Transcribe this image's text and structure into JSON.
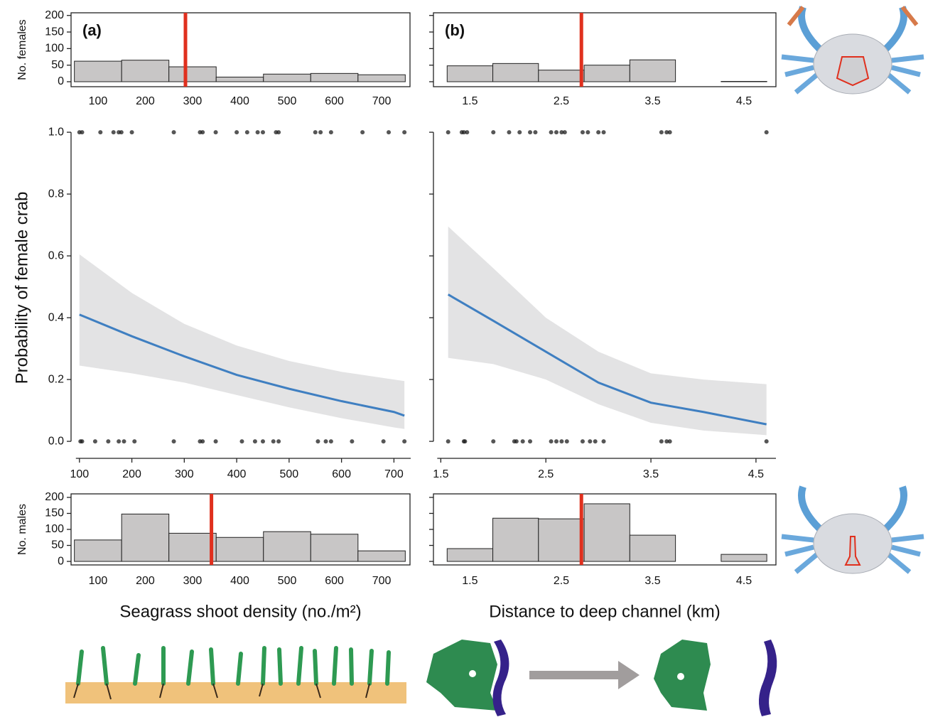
{
  "chart_data": [
    {
      "type": "histogram",
      "panel_label": "(a)",
      "y_label": "No. females",
      "bins": [
        50,
        150,
        250,
        350,
        450,
        550,
        650,
        750
      ],
      "counts": [
        62,
        65,
        45,
        14,
        23,
        25,
        21
      ],
      "color": "#c8c6c6",
      "reference_line": {
        "value": 285,
        "color": "#e0301e"
      },
      "xlim": [
        43,
        760
      ],
      "ylim": [
        -15,
        208
      ],
      "xticks": [
        100,
        200,
        300,
        400,
        500,
        600,
        700
      ],
      "yticks": [
        0,
        50,
        100,
        150,
        200
      ]
    },
    {
      "type": "histogram",
      "panel_label": "(b)",
      "bins": [
        1.25,
        1.75,
        2.25,
        2.75,
        3.25,
        3.75,
        4.25,
        4.75
      ],
      "counts": [
        48,
        55,
        35,
        50,
        66,
        0,
        1
      ],
      "color": "#c8c6c6",
      "reference_line": {
        "value": 2.72,
        "color": "#e0301e"
      },
      "xlim": [
        1.1,
        4.85
      ],
      "ylim": [
        -15,
        208
      ],
      "xticks": [
        1.5,
        2.5,
        3.5,
        4.5
      ],
      "yticks": [
        0,
        50,
        100,
        150,
        200
      ]
    },
    {
      "type": "line",
      "y_label": "Probability of female crab",
      "x": [
        100,
        200,
        300,
        400,
        500,
        600,
        700,
        720
      ],
      "fit": {
        "color": "#3f7fc1",
        "values": [
          0.41,
          0.34,
          0.275,
          0.215,
          0.17,
          0.13,
          0.095,
          0.083
        ]
      },
      "band": {
        "color": "#e3e3e4",
        "lower": [
          0.245,
          0.22,
          0.19,
          0.15,
          0.11,
          0.075,
          0.045,
          0.04
        ],
        "upper": [
          0.605,
          0.48,
          0.38,
          0.31,
          0.26,
          0.225,
          0.2,
          0.195
        ]
      },
      "points": {
        "color": "#1e1e1e",
        "x": [
          100,
          105,
          140,
          165,
          175,
          180,
          200,
          280,
          330,
          335,
          360,
          400,
          420,
          440,
          450,
          475,
          480,
          550,
          560,
          580,
          640,
          690,
          720,
          102,
          105,
          130,
          155,
          175,
          185,
          205,
          280,
          330,
          335,
          360,
          410,
          435,
          450,
          470,
          480,
          555,
          570,
          580,
          620,
          680,
          720
        ],
        "y": [
          1,
          1,
          1,
          1,
          1,
          1,
          1,
          1,
          1,
          1,
          1,
          1,
          1,
          1,
          1,
          1,
          1,
          1,
          1,
          1,
          1,
          1,
          1,
          0,
          0,
          0,
          0,
          0,
          0,
          0,
          0,
          0,
          0,
          0,
          0,
          0,
          0,
          0,
          0,
          0,
          0,
          0,
          0,
          0,
          0
        ]
      },
      "xlim": [
        84,
        732
      ],
      "ylim": [
        -0.055,
        1.06
      ],
      "xticks": [
        100,
        200,
        300,
        400,
        500,
        600,
        700
      ],
      "yticks": [
        {
          "value": 0,
          "label": "0.0"
        },
        0.2,
        0.4,
        0.6,
        0.8,
        {
          "value": 1,
          "label": "1.0"
        }
      ]
    },
    {
      "type": "line",
      "x": [
        1.57,
        2,
        2.5,
        3,
        3.5,
        4,
        4.6
      ],
      "fit": {
        "color": "#3f7fc1",
        "values": [
          0.475,
          0.39,
          0.29,
          0.19,
          0.125,
          0.095,
          0.055
        ]
      },
      "band": {
        "color": "#e3e3e4",
        "lower": [
          0.27,
          0.25,
          0.2,
          0.12,
          0.06,
          0.035,
          0.02
        ],
        "upper": [
          0.695,
          0.56,
          0.4,
          0.29,
          0.22,
          0.2,
          0.185
        ]
      },
      "points": {
        "color": "#1e1e1e",
        "x": [
          1.57,
          1.7,
          1.72,
          1.75,
          2.0,
          2.15,
          2.25,
          2.35,
          2.4,
          2.55,
          2.6,
          2.65,
          2.68,
          2.85,
          2.9,
          3.0,
          3.05,
          3.6,
          3.65,
          3.68,
          4.6,
          1.57,
          1.72,
          1.73,
          2.0,
          2.2,
          2.22,
          2.28,
          2.35,
          2.55,
          2.6,
          2.65,
          2.7,
          2.85,
          2.92,
          2.97,
          3.05,
          3.6,
          3.65,
          3.68,
          4.6
        ],
        "y": [
          1,
          1,
          1,
          1,
          1,
          1,
          1,
          1,
          1,
          1,
          1,
          1,
          1,
          1,
          1,
          1,
          1,
          1,
          1,
          1,
          1,
          0,
          0,
          0,
          0,
          0,
          0,
          0,
          0,
          0,
          0,
          0,
          0,
          0,
          0,
          0,
          0,
          0,
          0,
          0,
          0
        ]
      },
      "xlim": [
        1.43,
        4.69
      ],
      "ylim": [
        -0.055,
        1.06
      ],
      "xticks": [
        1.5,
        2.5,
        3.5,
        4.5
      ],
      "yticks": [
        0,
        0.2,
        0.4,
        0.6,
        0.8,
        1
      ],
      "ytick_labels": false
    },
    {
      "type": "histogram",
      "y_label": "No. males",
      "x_label": "Seagrass shoot density (no./m²)",
      "bins": [
        50,
        150,
        250,
        350,
        450,
        550,
        650,
        750
      ],
      "counts": [
        67,
        148,
        88,
        75,
        93,
        85,
        33
      ],
      "color": "#c8c6c6",
      "reference_line": {
        "value": 340,
        "color": "#e0301e"
      },
      "xlim": [
        43,
        760
      ],
      "ylim": [
        -11,
        211
      ],
      "xticks": [
        100,
        200,
        300,
        400,
        500,
        600,
        700
      ],
      "yticks": [
        0,
        50,
        100,
        150,
        200
      ]
    },
    {
      "type": "histogram",
      "x_label": "Distance to deep channel (km)",
      "bins": [
        1.25,
        1.75,
        2.25,
        2.75,
        3.25,
        3.75,
        4.25,
        4.75
      ],
      "counts": [
        40,
        135,
        133,
        180,
        82,
        0,
        22
      ],
      "color": "#c8c6c6",
      "reference_line": {
        "value": 2.72,
        "color": "#e0301e"
      },
      "xlim": [
        1.1,
        4.85
      ],
      "ylim": [
        -11,
        211
      ],
      "xticks": [
        1.5,
        2.5,
        3.5,
        4.5
      ],
      "yticks": [
        0,
        50,
        100,
        150,
        200
      ]
    }
  ]
}
